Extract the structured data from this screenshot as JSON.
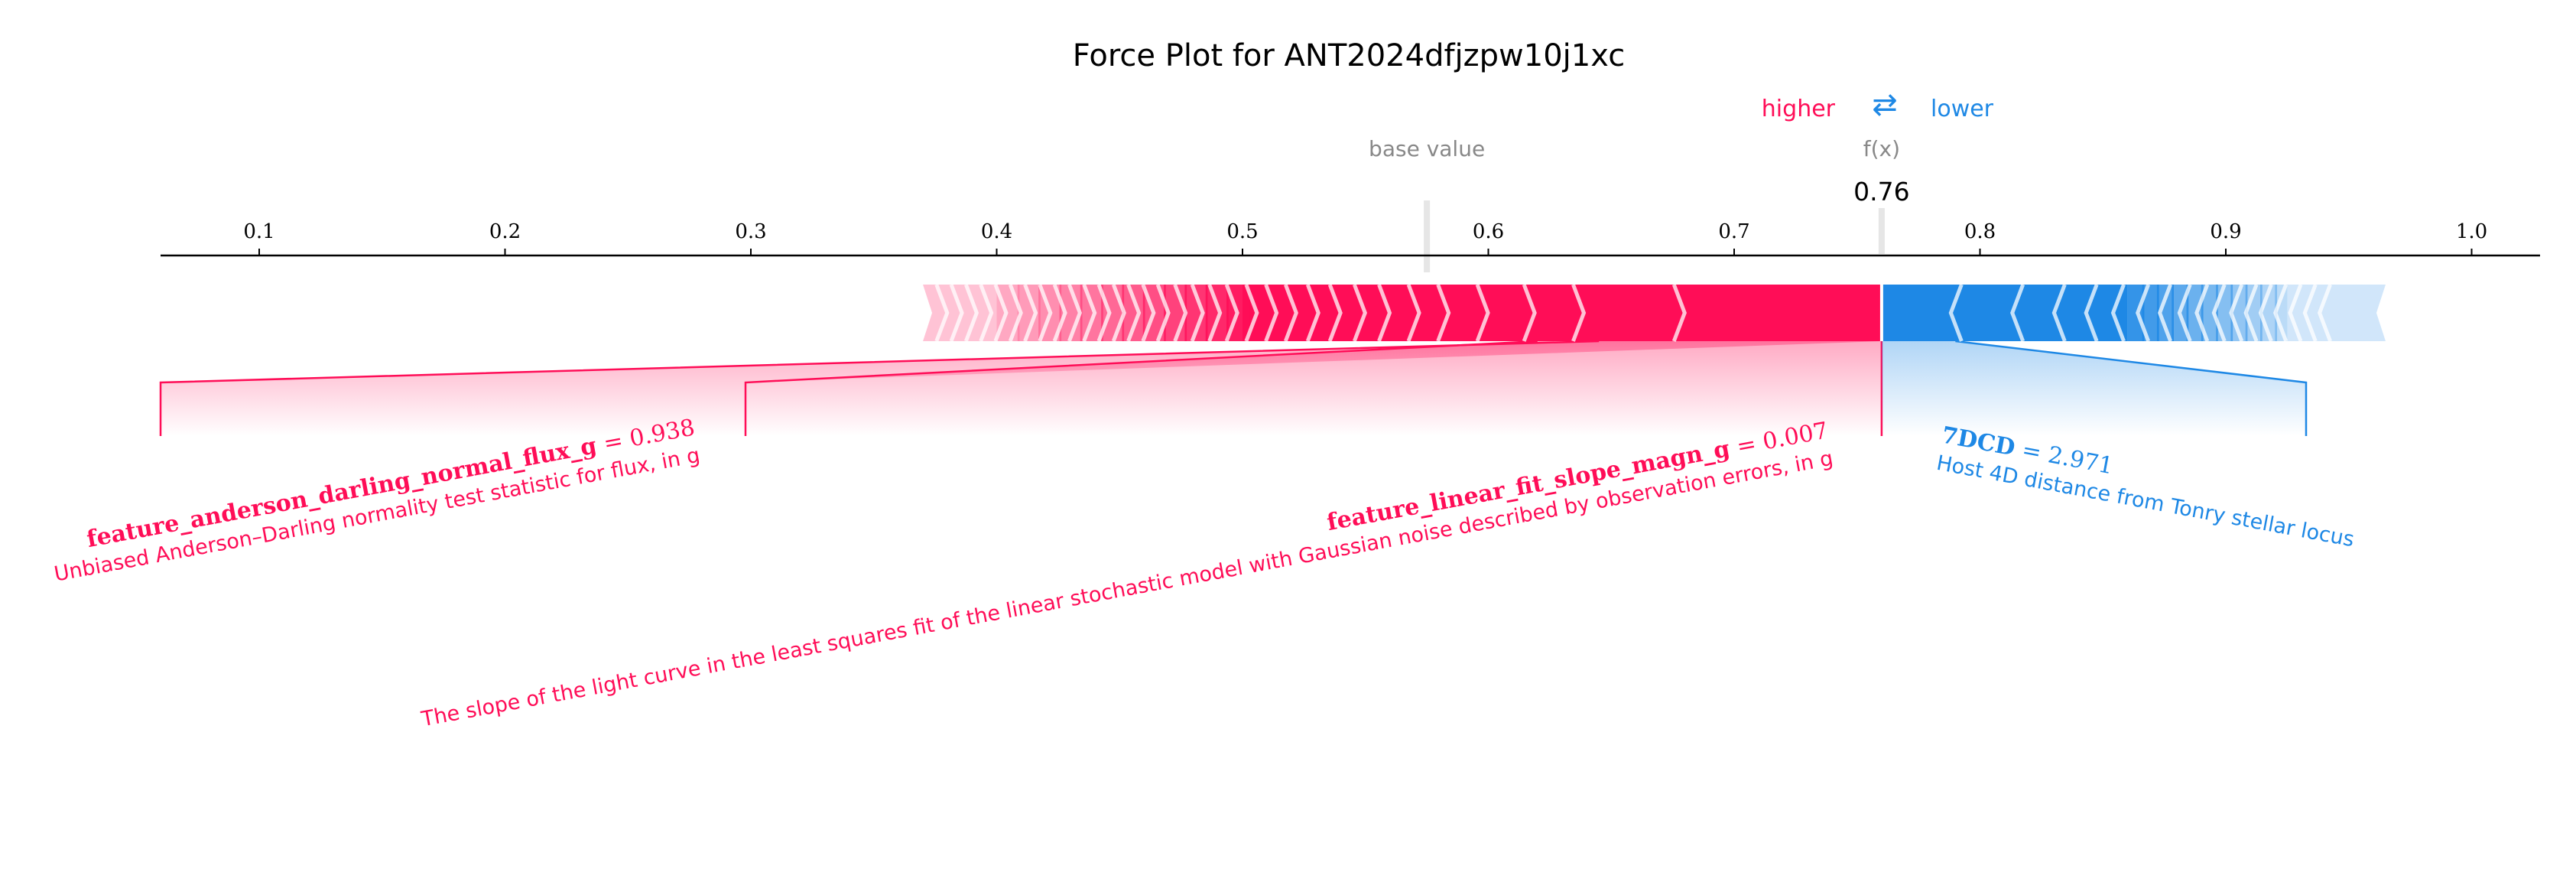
{
  "chart_data": {
    "type": "force",
    "title": "Force Plot for ANT2024dfjzpw10j1xc",
    "legend": {
      "higher_label": "higher",
      "lower_label": "lower",
      "arrows": "⇄",
      "higher_color": "#ff0d57",
      "lower_color": "#1e88e5"
    },
    "base_value": 0.575,
    "base_value_label": "base value",
    "output_value": 0.76,
    "output_label": "f(x)",
    "output_value_text": "0.76",
    "xlim": [
      0.06,
      1.03
    ],
    "ticks": [
      "0.1",
      "0.2",
      "0.3",
      "0.4",
      "0.5",
      "0.6",
      "0.7",
      "0.8",
      "0.9",
      "1.0"
    ],
    "positive_bar": [
      0.37,
      0.76
    ],
    "negative_bar": [
      0.76,
      0.965
    ],
    "features": [
      {
        "name": "feature_anderson_darling_normal_flux_g",
        "value_text": "= 0.938",
        "description": "Unbiased Anderson–Darling normality test statistic for flux, in g",
        "effect": "positive",
        "span": [
          0.645,
          0.76
        ]
      },
      {
        "name": "feature_linear_fit_slope_magn_g",
        "value_text": "= 0.007",
        "description": "The slope of the light curve in the least squares fit of the linear stochastic model with Gaussian noise described by observation errors, in g",
        "effect": "positive",
        "span": [
          0.62,
          0.76
        ]
      },
      {
        "name": "7DCD",
        "value_text": "= 2.971",
        "description": "Host 4D distance from Tonry stellar locus",
        "effect": "negative",
        "span": [
          0.76,
          0.79
        ]
      }
    ]
  }
}
